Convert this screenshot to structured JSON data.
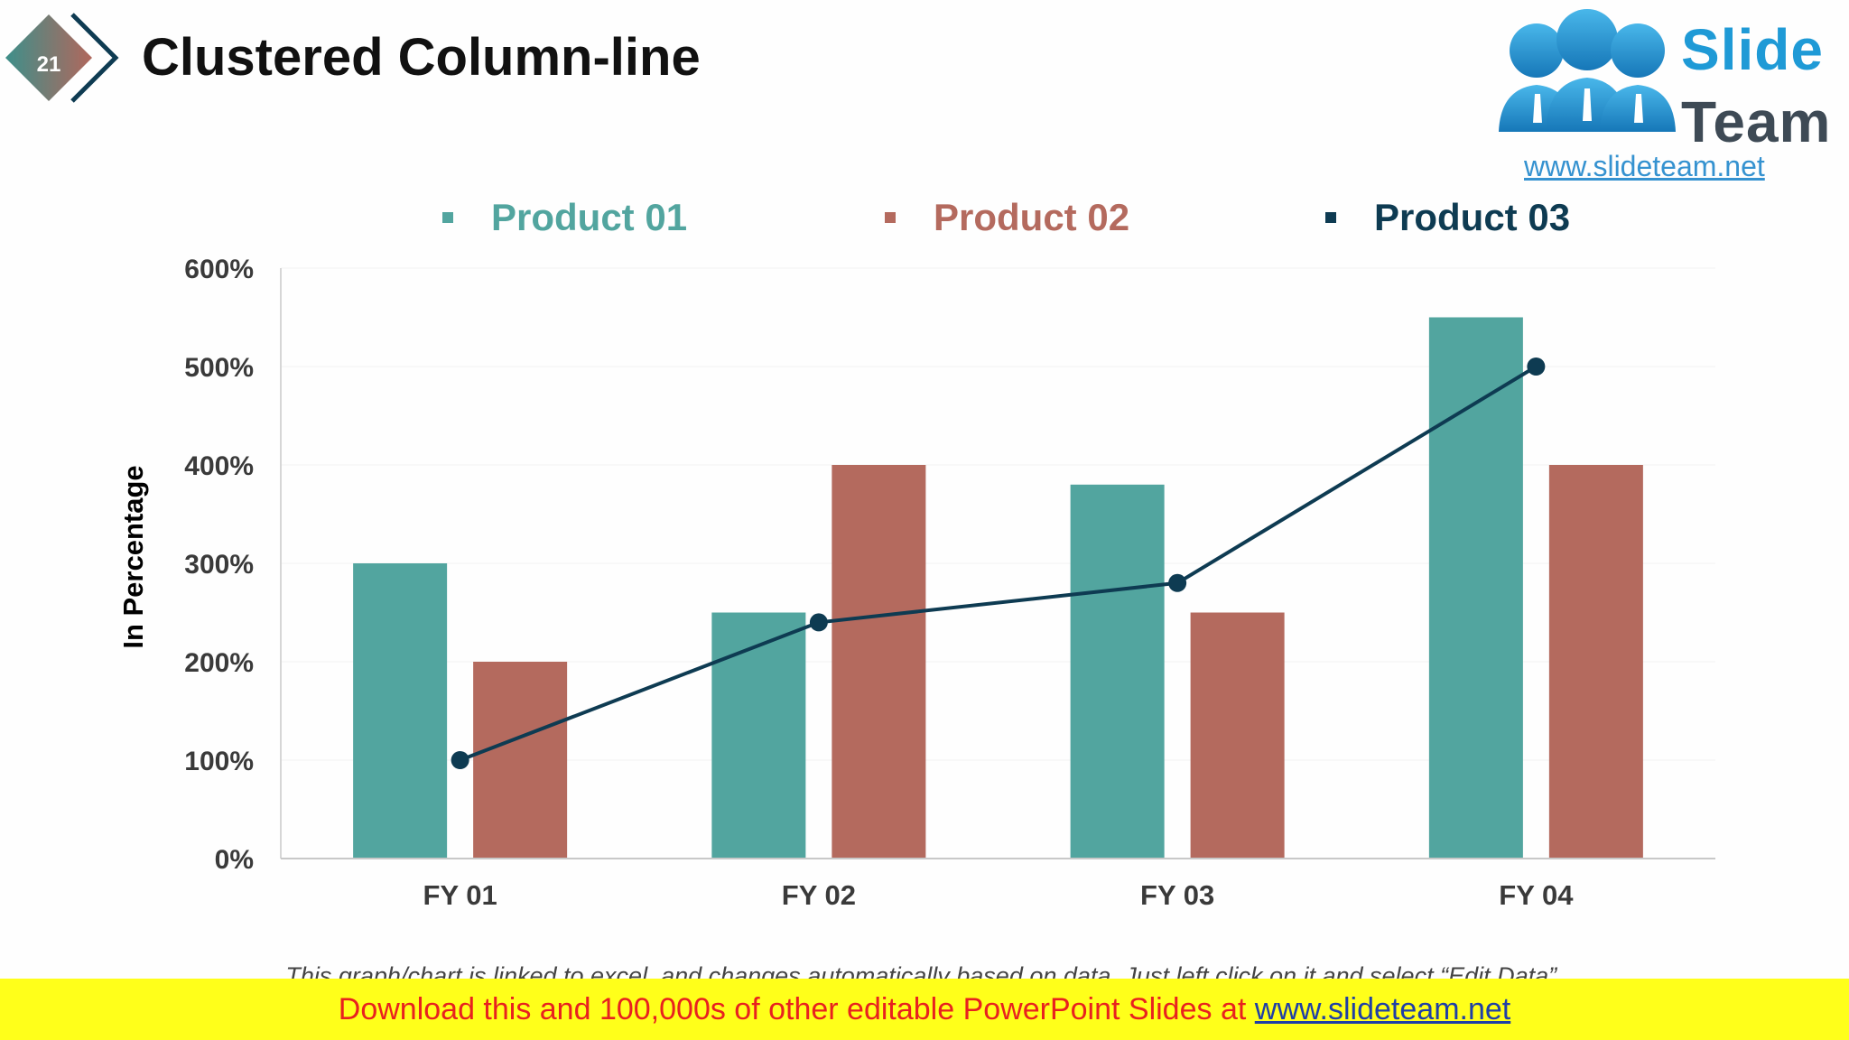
{
  "slide": {
    "number": "21",
    "title": "Clustered Column-line"
  },
  "logo": {
    "word1": "Slide",
    "word2": "Team",
    "url": "www.slideteam.net"
  },
  "colors": {
    "product01": "#52a59f",
    "product02": "#b46a5e",
    "product03": "#0e3b52",
    "banner_bg": "#ffff1a",
    "banner_text": "#e8211f"
  },
  "legend": {
    "product01": "Product 01",
    "product02": "Product 02",
    "product03": "Product 03"
  },
  "chart_data": {
    "type": "bar",
    "title": "",
    "xlabel": "",
    "ylabel": "In Percentage",
    "categories": [
      "FY 01",
      "FY 02",
      "FY 03",
      "FY 04"
    ],
    "series": [
      {
        "name": "Product 01",
        "type": "bar",
        "values": [
          300,
          250,
          380,
          550
        ]
      },
      {
        "name": "Product 02",
        "type": "bar",
        "values": [
          200,
          400,
          250,
          400
        ]
      },
      {
        "name": "Product 03",
        "type": "line",
        "values": [
          100,
          240,
          280,
          500
        ]
      }
    ],
    "ylim": [
      0,
      600
    ],
    "yticks": [
      "0%",
      "100%",
      "200%",
      "300%",
      "400%",
      "500%",
      "600%"
    ],
    "grid": true,
    "legend_position": "top"
  },
  "note": "This graph/chart is linked to excel, and changes automatically based on data. Just left click on it and select “Edit Data”.",
  "banner": {
    "text": "Download this and 100,000s of other editable PowerPoint Slides at ",
    "link": "www.slideteam.net"
  }
}
